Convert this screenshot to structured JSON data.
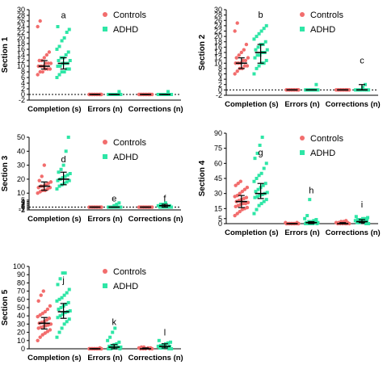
{
  "colors": {
    "controls": "#f26d6d",
    "adhd": "#2ee6a6",
    "axis": "#000000",
    "zero_line": "#000000",
    "error_bar": "#000000"
  },
  "chart_data": [
    {
      "type": "scatter",
      "panel": "section-1",
      "ylabel": "Section 1",
      "ylim": [
        -2,
        30
      ],
      "yticks": [
        -2,
        0,
        2,
        4,
        6,
        8,
        10,
        12,
        14,
        16,
        18,
        20,
        22,
        24,
        26,
        28,
        30
      ],
      "categories": [
        "Completion (s)",
        "Errors (n)",
        "Corrections (n)"
      ],
      "legend": [
        "Controls",
        "ADHD"
      ],
      "letters": [
        {
          "category": 0,
          "text": "a",
          "y": 27
        }
      ],
      "series": [
        {
          "name": "Controls",
          "median": [
            10,
            0,
            0
          ],
          "error": [
            [
              9,
              12
            ],
            [
              0,
              0
            ],
            [
              0,
              0
            ]
          ],
          "points": [
            [
              7,
              8,
              8,
              9,
              9,
              9,
              10,
              10,
              10,
              11,
              11,
              11,
              12,
              12,
              13,
              14,
              15,
              24,
              26
            ],
            [
              0,
              0,
              0,
              0,
              0,
              0,
              0,
              0,
              0,
              0,
              0,
              0
            ],
            [
              0,
              0,
              0,
              0,
              0,
              0,
              0,
              0,
              0,
              0,
              0,
              0
            ]
          ]
        },
        {
          "name": "ADHD",
          "median": [
            11,
            0,
            0
          ],
          "error": [
            [
              9,
              13
            ],
            [
              0,
              0
            ],
            [
              0,
              0
            ]
          ],
          "points": [
            [
              6,
              7,
              8,
              8,
              9,
              9,
              10,
              10,
              11,
              11,
              11,
              12,
              12,
              13,
              13,
              14,
              15,
              16,
              17,
              19,
              20,
              22,
              23,
              24
            ],
            [
              0,
              0,
              0,
              0,
              0,
              0,
              0,
              0,
              0,
              0,
              0,
              1
            ],
            [
              0,
              0,
              0,
              0,
              0,
              0,
              0,
              0,
              0,
              0,
              0,
              1
            ]
          ]
        }
      ]
    },
    {
      "type": "scatter",
      "panel": "section-2",
      "ylabel": "Section 2",
      "ylim": [
        -2,
        30
      ],
      "yticks": [
        -2,
        0,
        2,
        4,
        6,
        8,
        10,
        12,
        14,
        16,
        18,
        20,
        22,
        24,
        26,
        28,
        30
      ],
      "categories": [
        "Completion (s)",
        "Errors (n)",
        "Corrections (n)"
      ],
      "legend": [
        "Controls",
        "ADHD"
      ],
      "letters": [
        {
          "category": 0,
          "text": "b",
          "y": 27
        },
        {
          "category": 2,
          "text": "c",
          "y": 10
        }
      ],
      "series": [
        {
          "name": "Controls",
          "median": [
            10,
            0,
            0
          ],
          "error": [
            [
              8,
              12
            ],
            [
              0,
              0
            ],
            [
              0,
              0
            ]
          ],
          "points": [
            [
              6,
              7,
              8,
              8,
              9,
              9,
              10,
              10,
              10,
              11,
              11,
              12,
              12,
              13,
              14,
              15,
              17,
              22,
              25
            ],
            [
              0,
              0,
              0,
              0,
              0,
              0,
              0,
              0,
              0,
              0,
              0,
              0
            ],
            [
              0,
              0,
              0,
              0,
              0,
              0,
              0,
              0,
              0,
              0,
              0,
              0
            ]
          ]
        },
        {
          "name": "ADHD",
          "median": [
            14,
            0,
            0
          ],
          "error": [
            [
              10,
              17
            ],
            [
              0,
              0
            ],
            [
              0,
              2
            ]
          ],
          "points": [
            [
              6,
              8,
              9,
              10,
              10,
              11,
              12,
              13,
              13,
              14,
              14,
              15,
              15,
              16,
              17,
              17,
              18,
              19,
              20,
              21,
              22,
              23,
              24
            ],
            [
              0,
              0,
              0,
              0,
              0,
              0,
              0,
              0,
              0,
              0,
              0,
              2
            ],
            [
              0,
              0,
              0,
              0,
              0,
              0,
              0,
              0,
              0,
              0,
              1,
              2
            ]
          ]
        }
      ]
    },
    {
      "type": "scatter",
      "panel": "section-3",
      "ylabel": "Section 3",
      "ylim": [
        -2,
        50
      ],
      "yticks": [
        -2,
        -1,
        0,
        1,
        2,
        3,
        4,
        5,
        10,
        20,
        30,
        40,
        50
      ],
      "ylabel_note": "",
      "categories": [
        "Completion (s)",
        "Errors (n)",
        "Corrections (n)"
      ],
      "legend": [
        "Controls",
        "ADHD"
      ],
      "letters": [
        {
          "category": 0,
          "text": "d",
          "y": 32
        },
        {
          "category": 1,
          "text": "e",
          "y": 4
        },
        {
          "category": 2,
          "text": "f",
          "y": 4
        }
      ],
      "series": [
        {
          "name": "Controls",
          "median": [
            15,
            0,
            0
          ],
          "error": [
            [
              12,
              18
            ],
            [
              0,
              0
            ],
            [
              0,
              0
            ]
          ],
          "points": [
            [
              10,
              11,
              12,
              12,
              13,
              14,
              14,
              15,
              15,
              16,
              17,
              18,
              19,
              22,
              30
            ],
            [
              0,
              0,
              0,
              0,
              0,
              0,
              0,
              0,
              0,
              0,
              0,
              0
            ],
            [
              0,
              0,
              0,
              0,
              0,
              0,
              0,
              0,
              0,
              0,
              0,
              0
            ]
          ]
        },
        {
          "name": "ADHD",
          "median": [
            20,
            0,
            1
          ],
          "error": [
            [
              16,
              25
            ],
            [
              0,
              0
            ],
            [
              0,
              2
            ]
          ],
          "points": [
            [
              13,
              15,
              16,
              17,
              18,
              19,
              19,
              20,
              21,
              22,
              23,
              24,
              25,
              27,
              30,
              40,
              50
            ],
            [
              0,
              0,
              0,
              0,
              0,
              0,
              0,
              0,
              0,
              1,
              2,
              3
            ],
            [
              0,
              0,
              0,
              0,
              0,
              0,
              1,
              1,
              2,
              2,
              3
            ]
          ]
        }
      ]
    },
    {
      "type": "scatter",
      "panel": "section-4",
      "ylabel": "Section 4",
      "ylim": [
        0,
        90
      ],
      "yticks": [
        0,
        5,
        15,
        30,
        45,
        60,
        75,
        90
      ],
      "categories": [
        "Completion (s)",
        "Errors (n)",
        "Corrections (n)"
      ],
      "legend": [
        "Controls",
        "ADHD"
      ],
      "letters": [
        {
          "category": 0,
          "text": "g",
          "y": 68
        },
        {
          "category": 1,
          "text": "h",
          "y": 30
        },
        {
          "category": 2,
          "text": "i",
          "y": 16
        }
      ],
      "series": [
        {
          "name": "Controls",
          "median": [
            22,
            0,
            0
          ],
          "error": [
            [
              16,
              28
            ],
            [
              0,
              0
            ],
            [
              0,
              1
            ]
          ],
          "points": [
            [
              8,
              10,
              12,
              14,
              15,
              16,
              17,
              18,
              19,
              20,
              20,
              21,
              22,
              23,
              24,
              25,
              26,
              27,
              28,
              30,
              32,
              34,
              36,
              38,
              40,
              42
            ],
            [
              0,
              0,
              0,
              0,
              0,
              0,
              0,
              0,
              0,
              0,
              0,
              1,
              1
            ],
            [
              0,
              0,
              0,
              0,
              0,
              0,
              1,
              1,
              1,
              2,
              2,
              3
            ]
          ]
        },
        {
          "name": "ADHD",
          "median": [
            30,
            1,
            2
          ],
          "error": [
            [
              25,
              40
            ],
            [
              0,
              2
            ],
            [
              1,
              4
            ]
          ],
          "points": [
            [
              10,
              14,
              18,
              20,
              22,
              24,
              26,
              27,
              28,
              29,
              30,
              31,
              32,
              34,
              36,
              38,
              40,
              42,
              45,
              48,
              50,
              55,
              60,
              65,
              70,
              78,
              86
            ],
            [
              0,
              0,
              0,
              0,
              0,
              1,
              1,
              1,
              2,
              2,
              3,
              4,
              5,
              8,
              24
            ],
            [
              0,
              0,
              1,
              1,
              2,
              2,
              3,
              3,
              4,
              4,
              5,
              5,
              6,
              7
            ]
          ]
        }
      ]
    },
    {
      "type": "scatter",
      "panel": "section-5",
      "ylabel": "Section 5",
      "ylim": [
        0,
        100
      ],
      "yticks": [
        0,
        10,
        20,
        30,
        40,
        50,
        60,
        70,
        80,
        90,
        100
      ],
      "categories": [
        "Completion (s)",
        "Errors (n)",
        "Corrections (n)"
      ],
      "legend": [
        "Controls",
        "ADHD"
      ],
      "letters": [
        {
          "category": 0,
          "text": "j",
          "y": 80
        },
        {
          "category": 1,
          "text": "k",
          "y": 29
        },
        {
          "category": 2,
          "text": "l",
          "y": 16
        }
      ],
      "series": [
        {
          "name": "Controls",
          "median": [
            31,
            0,
            0
          ],
          "error": [
            [
              24,
              38
            ],
            [
              0,
              0
            ],
            [
              0,
              1
            ]
          ],
          "points": [
            [
              10,
              14,
              17,
              19,
              21,
              23,
              25,
              26,
              27,
              28,
              29,
              30,
              31,
              32,
              33,
              35,
              37,
              39,
              41,
              43,
              45,
              48,
              52,
              58,
              65,
              70
            ],
            [
              0,
              0,
              0,
              0,
              0,
              0,
              0,
              0,
              0,
              0,
              0,
              1
            ],
            [
              0,
              0,
              0,
              0,
              0,
              1,
              1,
              1,
              2,
              2
            ]
          ]
        },
        {
          "name": "ADHD",
          "median": [
            45,
            2,
            3
          ],
          "error": [
            [
              37,
              55
            ],
            [
              0,
              5
            ],
            [
              1,
              6
            ]
          ],
          "points": [
            [
              14,
              20,
              25,
              30,
              33,
              36,
              38,
              40,
              42,
              44,
              45,
              46,
              48,
              50,
              52,
              54,
              56,
              58,
              60,
              62,
              65,
              68,
              72,
              78,
              85,
              92,
              92
            ],
            [
              0,
              0,
              0,
              1,
              1,
              2,
              2,
              3,
              4,
              5,
              6,
              8,
              10,
              14,
              20,
              25
            ],
            [
              0,
              0,
              1,
              1,
              2,
              2,
              3,
              3,
              4,
              5,
              6,
              7,
              8,
              10
            ]
          ]
        }
      ]
    }
  ]
}
